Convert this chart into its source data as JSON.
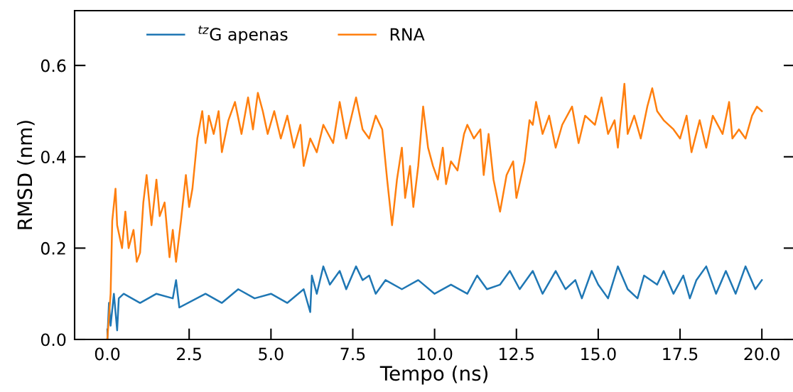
{
  "chart_data": {
    "type": "line",
    "xlabel": "Tempo (ns)",
    "ylabel": "RMSD (nm)",
    "xlim": [
      -1,
      21
    ],
    "ylim": [
      0,
      0.72
    ],
    "xticks": [
      {
        "value": 0,
        "label": "0.0"
      },
      2.5,
      {
        "value": 5,
        "label": "5.0"
      },
      7.5,
      {
        "value": 10,
        "label": "10.0"
      },
      12.5,
      {
        "value": 15,
        "label": "15.0"
      },
      17.5,
      {
        "value": 20,
        "label": "20.0"
      }
    ],
    "yticks": [
      {
        "value": 0,
        "label": "0.0"
      },
      0.2,
      0.4,
      0.6
    ],
    "grid": false,
    "legend": "top left",
    "marker": "none",
    "line_style": "solid",
    "series": [
      {
        "name": "$^{tz}$G apenas",
        "color": "#1f77b4",
        "x": [
          0,
          0.05,
          0.1,
          0.2,
          0.3,
          0.35,
          0.5,
          1,
          1.5,
          2.0,
          2.1,
          2.2,
          3,
          3.5,
          4,
          4.5,
          5,
          5.5,
          6.0,
          6.2,
          6.25,
          6.4,
          6.6,
          6.8,
          7.1,
          7.3,
          7.6,
          7.8,
          8.0,
          8.2,
          8.5,
          9.0,
          9.5,
          10.0,
          10.5,
          11.0,
          11.3,
          11.6,
          12.0,
          12.3,
          12.6,
          13.0,
          13.3,
          13.7,
          14.0,
          14.3,
          14.5,
          14.8,
          15.0,
          15.3,
          15.6,
          15.9,
          16.2,
          16.4,
          16.8,
          17.0,
          17.3,
          17.6,
          17.8,
          18.0,
          18.3,
          18.6,
          18.9,
          19.2,
          19.5,
          19.8,
          20.0
        ],
        "values": [
          0.0,
          0.08,
          0.03,
          0.1,
          0.02,
          0.09,
          0.1,
          0.08,
          0.1,
          0.09,
          0.13,
          0.07,
          0.1,
          0.08,
          0.11,
          0.09,
          0.1,
          0.08,
          0.11,
          0.06,
          0.14,
          0.1,
          0.16,
          0.12,
          0.15,
          0.11,
          0.16,
          0.13,
          0.14,
          0.1,
          0.13,
          0.11,
          0.13,
          0.1,
          0.12,
          0.1,
          0.14,
          0.11,
          0.12,
          0.15,
          0.11,
          0.15,
          0.1,
          0.15,
          0.11,
          0.13,
          0.09,
          0.15,
          0.12,
          0.09,
          0.16,
          0.11,
          0.09,
          0.14,
          0.12,
          0.15,
          0.1,
          0.14,
          0.09,
          0.13,
          0.16,
          0.1,
          0.15,
          0.1,
          0.16,
          0.11,
          0.13
        ]
      },
      {
        "name": "RNA",
        "color": "#ff7f0e",
        "x": [
          0,
          0.1,
          0.15,
          0.25,
          0.3,
          0.45,
          0.55,
          0.65,
          0.8,
          0.9,
          1.0,
          1.1,
          1.2,
          1.35,
          1.5,
          1.6,
          1.75,
          1.9,
          2.0,
          2.1,
          2.25,
          2.4,
          2.5,
          2.6,
          2.75,
          2.9,
          3.0,
          3.1,
          3.25,
          3.4,
          3.5,
          3.7,
          3.9,
          4.1,
          4.3,
          4.45,
          4.6,
          4.75,
          4.9,
          5.1,
          5.3,
          5.5,
          5.7,
          5.9,
          6.0,
          6.2,
          6.4,
          6.6,
          6.9,
          7.1,
          7.3,
          7.6,
          7.8,
          8.0,
          8.2,
          8.4,
          8.55,
          8.7,
          8.85,
          9.0,
          9.1,
          9.25,
          9.35,
          9.5,
          9.65,
          9.8,
          9.95,
          10.1,
          10.25,
          10.35,
          10.5,
          10.7,
          10.9,
          11.0,
          11.2,
          11.4,
          11.5,
          11.65,
          11.8,
          12.0,
          12.2,
          12.4,
          12.5,
          12.75,
          12.9,
          13.0,
          13.1,
          13.3,
          13.5,
          13.7,
          13.9,
          14.2,
          14.4,
          14.6,
          14.9,
          15.1,
          15.3,
          15.5,
          15.6,
          15.8,
          15.9,
          16.1,
          16.3,
          16.5,
          16.65,
          16.8,
          17.0,
          17.3,
          17.5,
          17.7,
          17.85,
          18.1,
          18.3,
          18.5,
          18.8,
          19.0,
          19.1,
          19.3,
          19.5,
          19.7,
          19.85,
          20.0
        ],
        "values": [
          0.0,
          0.1,
          0.26,
          0.33,
          0.25,
          0.2,
          0.28,
          0.2,
          0.24,
          0.17,
          0.19,
          0.3,
          0.36,
          0.25,
          0.35,
          0.27,
          0.3,
          0.18,
          0.24,
          0.17,
          0.26,
          0.36,
          0.29,
          0.33,
          0.44,
          0.5,
          0.43,
          0.49,
          0.45,
          0.5,
          0.41,
          0.48,
          0.52,
          0.45,
          0.53,
          0.46,
          0.54,
          0.5,
          0.45,
          0.5,
          0.44,
          0.49,
          0.42,
          0.47,
          0.38,
          0.44,
          0.41,
          0.47,
          0.43,
          0.52,
          0.44,
          0.53,
          0.46,
          0.44,
          0.49,
          0.46,
          0.35,
          0.25,
          0.35,
          0.42,
          0.31,
          0.38,
          0.29,
          0.38,
          0.51,
          0.42,
          0.38,
          0.35,
          0.42,
          0.34,
          0.39,
          0.37,
          0.45,
          0.47,
          0.44,
          0.46,
          0.36,
          0.45,
          0.35,
          0.28,
          0.36,
          0.39,
          0.31,
          0.39,
          0.48,
          0.47,
          0.52,
          0.45,
          0.49,
          0.42,
          0.47,
          0.51,
          0.43,
          0.49,
          0.47,
          0.53,
          0.45,
          0.48,
          0.42,
          0.56,
          0.45,
          0.49,
          0.44,
          0.51,
          0.55,
          0.5,
          0.48,
          0.46,
          0.44,
          0.49,
          0.41,
          0.48,
          0.42,
          0.49,
          0.45,
          0.52,
          0.44,
          0.46,
          0.44,
          0.49,
          0.51,
          0.5
        ]
      }
    ]
  }
}
